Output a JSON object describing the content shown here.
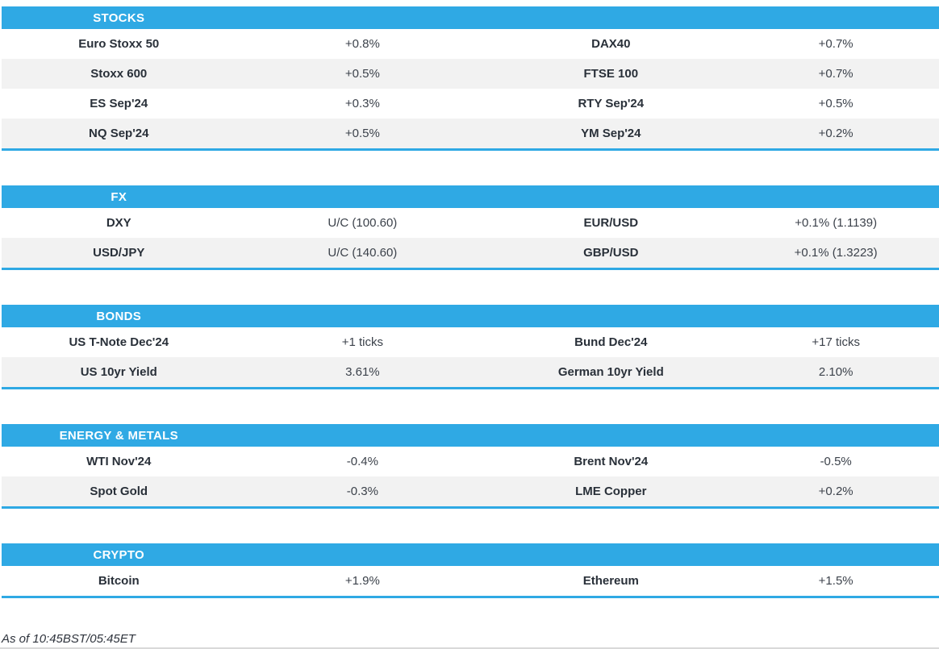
{
  "colors": {
    "accent_blue": "#2FA9E4",
    "row_alt_gray": "#F2F2F2",
    "label_text": "#293039",
    "value_text": "#3C424B"
  },
  "sections": [
    {
      "title": "STOCKS",
      "rows": [
        [
          "Euro Stoxx 50",
          "+0.8%",
          "DAX40",
          "+0.7%"
        ],
        [
          "Stoxx 600",
          "+0.5%",
          "FTSE 100",
          "+0.7%"
        ],
        [
          "ES Sep'24",
          "+0.3%",
          "RTY Sep'24",
          "+0.5%"
        ],
        [
          "NQ Sep'24",
          "+0.5%",
          "YM Sep'24",
          "+0.2%"
        ]
      ]
    },
    {
      "title": "FX",
      "rows": [
        [
          "DXY",
          "U/C (100.60)",
          "EUR/USD",
          "+0.1% (1.1139)"
        ],
        [
          "USD/JPY",
          "U/C (140.60)",
          "GBP/USD",
          "+0.1% (1.3223)"
        ]
      ]
    },
    {
      "title": "BONDS",
      "rows": [
        [
          "US T-Note Dec'24",
          "+1 ticks",
          "Bund Dec'24",
          "+17 ticks"
        ],
        [
          "US 10yr Yield",
          "3.61%",
          "German 10yr Yield",
          "2.10%"
        ]
      ]
    },
    {
      "title": "ENERGY & METALS",
      "rows": [
        [
          "WTI Nov'24",
          "-0.4%",
          "Brent Nov'24",
          "-0.5%"
        ],
        [
          "Spot Gold",
          "-0.3%",
          "LME Copper",
          "+0.2%"
        ]
      ]
    },
    {
      "title": "CRYPTO",
      "rows": [
        [
          "Bitcoin",
          "+1.9%",
          "Ethereum",
          "+1.5%"
        ]
      ]
    }
  ],
  "footer": {
    "as_of": "As of 10:45BST/05:45ET"
  }
}
